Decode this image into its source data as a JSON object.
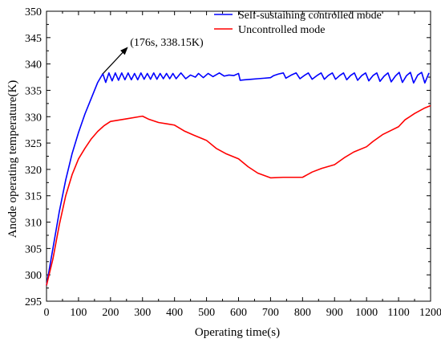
{
  "chart_data": {
    "type": "line",
    "xlabel": "Operating time(s)",
    "ylabel": "Anode operating temperature(K)",
    "xlim": [
      0,
      1200
    ],
    "ylim": [
      295,
      350
    ],
    "x_ticks": [
      "0",
      "100",
      "200",
      "300",
      "400",
      "500",
      "600",
      "700",
      "800",
      "900",
      "1000",
      "1100",
      "1200"
    ],
    "y_ticks": [
      "295",
      "300",
      "305",
      "310",
      "315",
      "320",
      "325",
      "330",
      "335",
      "340",
      "345",
      "350"
    ],
    "grid": false,
    "legend_position": "top-right",
    "series": [
      {
        "name": "Self-sustaining controlled mode",
        "color": "#0000ff",
        "points": [
          [
            0,
            298
          ],
          [
            20,
            305
          ],
          [
            40,
            312
          ],
          [
            60,
            318
          ],
          [
            80,
            323
          ],
          [
            100,
            327
          ],
          [
            120,
            330.5
          ],
          [
            140,
            333.5
          ],
          [
            160,
            336.5
          ],
          [
            176,
            338.15
          ],
          [
            185,
            336.5
          ],
          [
            195,
            338.3
          ],
          [
            205,
            336.8
          ],
          [
            215,
            338.3
          ],
          [
            225,
            336.9
          ],
          [
            235,
            338.3
          ],
          [
            245,
            337
          ],
          [
            255,
            338.3
          ],
          [
            265,
            337
          ],
          [
            275,
            338.2
          ],
          [
            285,
            337
          ],
          [
            295,
            338.3
          ],
          [
            305,
            337.1
          ],
          [
            315,
            338.2
          ],
          [
            325,
            337.1
          ],
          [
            335,
            338.3
          ],
          [
            345,
            337.1
          ],
          [
            355,
            338.2
          ],
          [
            365,
            337.2
          ],
          [
            375,
            338.2
          ],
          [
            385,
            337.2
          ],
          [
            395,
            338.2
          ],
          [
            405,
            337.2
          ],
          [
            420,
            338.3
          ],
          [
            435,
            337.2
          ],
          [
            450,
            337.9
          ],
          [
            465,
            337.5
          ],
          [
            475,
            338.2
          ],
          [
            490,
            337.4
          ],
          [
            505,
            338.2
          ],
          [
            520,
            337.6
          ],
          [
            540,
            338.3
          ],
          [
            555,
            337.7
          ],
          [
            570,
            337.9
          ],
          [
            585,
            337.8
          ],
          [
            600,
            338.2
          ],
          [
            605,
            336.9
          ],
          [
            620,
            337
          ],
          [
            640,
            337.1
          ],
          [
            660,
            337.2
          ],
          [
            680,
            337.3
          ],
          [
            700,
            337.4
          ],
          [
            710,
            337.8
          ],
          [
            725,
            338.1
          ],
          [
            740,
            338.3
          ],
          [
            748,
            337.3
          ],
          [
            765,
            337.9
          ],
          [
            780,
            338.3
          ],
          [
            792,
            337.2
          ],
          [
            805,
            337.8
          ],
          [
            818,
            338.3
          ],
          [
            830,
            337.1
          ],
          [
            845,
            337.8
          ],
          [
            858,
            338.3
          ],
          [
            868,
            337.1
          ],
          [
            880,
            337.8
          ],
          [
            893,
            338.3
          ],
          [
            903,
            337.1
          ],
          [
            916,
            337.8
          ],
          [
            928,
            338.3
          ],
          [
            938,
            337
          ],
          [
            950,
            337.8
          ],
          [
            962,
            338.3
          ],
          [
            972,
            336.9
          ],
          [
            985,
            337.8
          ],
          [
            997,
            338.3
          ],
          [
            1007,
            336.8
          ],
          [
            1020,
            337.8
          ],
          [
            1032,
            338.3
          ],
          [
            1042,
            336.7
          ],
          [
            1055,
            337.7
          ],
          [
            1067,
            338.3
          ],
          [
            1077,
            336.6
          ],
          [
            1090,
            337.7
          ],
          [
            1102,
            338.4
          ],
          [
            1112,
            336.5
          ],
          [
            1125,
            337.8
          ],
          [
            1137,
            338.4
          ],
          [
            1147,
            336.4
          ],
          [
            1160,
            337.9
          ],
          [
            1172,
            338.4
          ],
          [
            1182,
            336.4
          ],
          [
            1195,
            338.3
          ]
        ]
      },
      {
        "name": "Uncontrolled mode",
        "color": "#ff0000",
        "points": [
          [
            0,
            298
          ],
          [
            20,
            303
          ],
          [
            40,
            309.5
          ],
          [
            60,
            315
          ],
          [
            80,
            319
          ],
          [
            100,
            322
          ],
          [
            120,
            324
          ],
          [
            140,
            325.8
          ],
          [
            160,
            327.2
          ],
          [
            180,
            328.3
          ],
          [
            200,
            329.1
          ],
          [
            250,
            329.6
          ],
          [
            290,
            330
          ],
          [
            300,
            330.1
          ],
          [
            320,
            329.5
          ],
          [
            350,
            328.9
          ],
          [
            380,
            328.6
          ],
          [
            400,
            328.4
          ],
          [
            430,
            327.3
          ],
          [
            460,
            326.5
          ],
          [
            500,
            325.5
          ],
          [
            530,
            324
          ],
          [
            560,
            323
          ],
          [
            600,
            322
          ],
          [
            630,
            320.5
          ],
          [
            660,
            319.3
          ],
          [
            700,
            318.4
          ],
          [
            740,
            318.5
          ],
          [
            800,
            318.5
          ],
          [
            830,
            319.5
          ],
          [
            860,
            320.2
          ],
          [
            900,
            320.9
          ],
          [
            930,
            322.2
          ],
          [
            960,
            323.3
          ],
          [
            1000,
            324.3
          ],
          [
            1020,
            325.3
          ],
          [
            1050,
            326.6
          ],
          [
            1080,
            327.5
          ],
          [
            1100,
            328.1
          ],
          [
            1120,
            329.4
          ],
          [
            1150,
            330.6
          ],
          [
            1180,
            331.6
          ],
          [
            1200,
            332.1
          ]
        ]
      }
    ],
    "annotations": [
      {
        "text": "(176s, 338.15K)",
        "x": 176,
        "y": 338.15
      }
    ]
  }
}
